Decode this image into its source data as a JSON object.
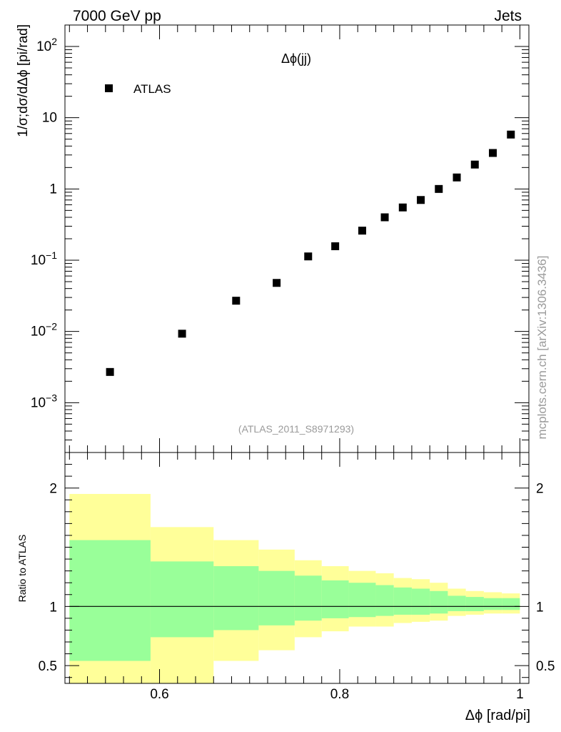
{
  "header": {
    "left": "7000 GeV pp",
    "right": "Jets"
  },
  "side_label": "mcplots.cern.ch [arXiv:1306.3436]",
  "chart_data": [
    {
      "type": "scatter",
      "title": "Δϕ(jj)",
      "watermark": "(ATLAS_2011_S8971293)",
      "xlabel": "",
      "ylabel": "1/σ;dσ/dΔϕ [pi/rad]",
      "yscale": "log",
      "xlim": [
        0.495,
        1.01
      ],
      "ylim": [
        0.0002,
        200
      ],
      "y_ticks": [
        {
          "value": 0.001,
          "label_base": "10",
          "label_exp": "−3"
        },
        {
          "value": 0.01,
          "label_base": "10",
          "label_exp": "−2"
        },
        {
          "value": 0.1,
          "label_base": "10",
          "label_exp": "−1"
        },
        {
          "value": 1,
          "label_base": "1",
          "label_exp": ""
        },
        {
          "value": 10,
          "label_base": "10",
          "label_exp": ""
        },
        {
          "value": 100,
          "label_base": "10",
          "label_exp": "2"
        }
      ],
      "legend": {
        "position": "top-left",
        "entries": [
          "ATLAS"
        ]
      },
      "series": [
        {
          "name": "ATLAS",
          "marker": "square",
          "color": "#000000",
          "x": [
            0.545,
            0.625,
            0.685,
            0.73,
            0.765,
            0.795,
            0.825,
            0.85,
            0.87,
            0.89,
            0.91,
            0.93,
            0.95,
            0.97,
            0.99
          ],
          "y": [
            0.0027,
            0.0093,
            0.027,
            0.048,
            0.113,
            0.157,
            0.26,
            0.4,
            0.55,
            0.7,
            1.0,
            1.45,
            2.2,
            3.2,
            5.8
          ]
        }
      ]
    },
    {
      "type": "area",
      "title": "",
      "xlabel": "Δϕ [rad/pi]",
      "ylabel": "Ratio to ATLAS",
      "xlim": [
        0.495,
        1.01
      ],
      "ylim": [
        0.35,
        2.3
      ],
      "x_ticks": [
        "0.6",
        "0.8",
        "1"
      ],
      "x_tick_values": [
        0.6,
        0.8,
        1.0
      ],
      "y_ticks": [
        "0.5",
        "1",
        "2"
      ],
      "y_tick_values": [
        0.5,
        1.0,
        2.0
      ],
      "reference_line": 1.0,
      "bin_edges": [
        0.5,
        0.59,
        0.66,
        0.71,
        0.75,
        0.78,
        0.81,
        0.84,
        0.86,
        0.88,
        0.9,
        0.92,
        0.94,
        0.96,
        0.98,
        1.0
      ],
      "bands": [
        {
          "name": "outer uncertainty",
          "color": "#ffff99",
          "lower": [
            0.3,
            0.3,
            0.54,
            0.63,
            0.74,
            0.79,
            0.83,
            0.83,
            0.86,
            0.87,
            0.88,
            0.92,
            0.93,
            0.94,
            0.94
          ],
          "upper": [
            1.95,
            1.67,
            1.56,
            1.48,
            1.39,
            1.34,
            1.3,
            1.28,
            1.24,
            1.23,
            1.2,
            1.15,
            1.13,
            1.12,
            1.11
          ]
        },
        {
          "name": "inner uncertainty",
          "color": "#99ff99",
          "lower": [
            0.54,
            0.74,
            0.8,
            0.84,
            0.88,
            0.9,
            0.91,
            0.92,
            0.93,
            0.93,
            0.94,
            0.96,
            0.96,
            0.97,
            0.97
          ],
          "upper": [
            1.56,
            1.38,
            1.34,
            1.3,
            1.26,
            1.22,
            1.2,
            1.18,
            1.16,
            1.15,
            1.13,
            1.09,
            1.08,
            1.07,
            1.07
          ]
        }
      ]
    }
  ]
}
